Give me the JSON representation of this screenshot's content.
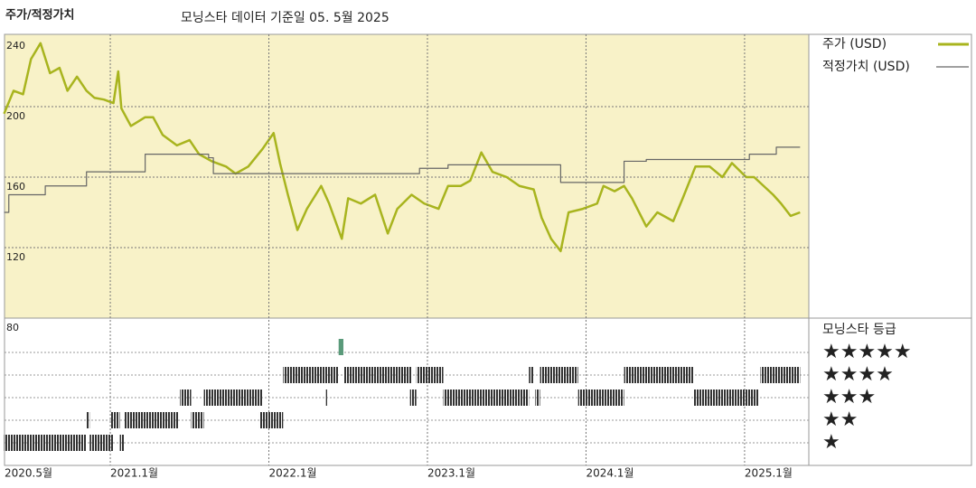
{
  "chart_data": [
    {
      "type": "line",
      "title": "주가/적정가치",
      "subtitle": "모닝스타 데이터 기준일 05. 5월 2025",
      "xlim": [
        2020.333,
        2025.405
      ],
      "ylim": [
        80,
        240
      ],
      "yticks": [
        80,
        120,
        160,
        200,
        240
      ],
      "grid": true,
      "series": [
        {
          "name": "주가 (USD)",
          "color": "#a8b41e",
          "step": false,
          "x": [
            2020.33,
            2020.39,
            2020.45,
            2020.5,
            2020.56,
            2020.62,
            2020.68,
            2020.73,
            2020.79,
            2020.85,
            2020.9,
            2020.96,
            2021.02,
            2021.05,
            2021.07,
            2021.13,
            2021.22,
            2021.27,
            2021.33,
            2021.42,
            2021.5,
            2021.56,
            2021.64,
            2021.73,
            2021.79,
            2021.87,
            2021.96,
            2022.03,
            2022.07,
            2022.12,
            2022.18,
            2022.24,
            2022.33,
            2022.38,
            2022.46,
            2022.5,
            2022.58,
            2022.67,
            2022.75,
            2022.81,
            2022.9,
            2022.98,
            2023.07,
            2023.13,
            2023.21,
            2023.27,
            2023.34,
            2023.41,
            2023.5,
            2023.58,
            2023.67,
            2023.72,
            2023.78,
            2023.84,
            2023.89,
            2023.98,
            2024.07,
            2024.11,
            2024.18,
            2024.24,
            2024.29,
            2024.38,
            2024.45,
            2024.55,
            2024.61,
            2024.69,
            2024.78,
            2024.86,
            2024.92,
            2025.01,
            2025.06,
            2025.12,
            2025.18,
            2025.23,
            2025.29,
            2025.35
          ],
          "values": [
            196,
            209,
            207,
            227,
            236,
            219,
            222,
            209,
            217,
            209,
            205,
            204,
            202,
            220,
            199,
            189,
            194,
            194,
            184,
            178,
            181,
            173,
            169,
            166,
            162,
            166,
            176,
            185,
            168,
            150,
            130,
            142,
            155,
            145,
            125,
            148,
            145,
            150,
            128,
            142,
            150,
            145,
            142,
            155,
            155,
            158,
            174,
            163,
            160,
            155,
            153,
            137,
            125,
            118,
            140,
            142,
            145,
            155,
            152,
            155,
            148,
            132,
            140,
            135,
            148,
            166,
            166,
            160,
            168,
            160,
            160,
            155,
            150,
            145,
            138,
            140
          ]
        },
        {
          "name": "적정가치 (USD)",
          "color": "#666666",
          "step": true,
          "x": [
            2020.33,
            2020.36,
            2020.59,
            2020.85,
            2021.22,
            2021.62,
            2021.65,
            2022.01,
            2022.95,
            2023.13,
            2023.84,
            2024.24,
            2024.38,
            2025.03,
            2025.2,
            2025.35
          ],
          "values": [
            140,
            150,
            155,
            163,
            173,
            171,
            162,
            162,
            165,
            167,
            157,
            169,
            170,
            173,
            177,
            177
          ]
        }
      ]
    },
    {
      "type": "rating",
      "title": "모닝스타 등급",
      "xlim": [
        2020.333,
        2025.405
      ],
      "xticks": [
        {
          "value": 2020.333,
          "label": "2020.5월"
        },
        {
          "value": 2021,
          "label": "2021.1월"
        },
        {
          "value": 2022,
          "label": "2022.1월"
        },
        {
          "value": 2023,
          "label": "2023.1월"
        },
        {
          "value": 2024,
          "label": "2024.1월"
        },
        {
          "value": 2025,
          "label": "2025.1월"
        }
      ],
      "categories": [
        "★",
        "★★",
        "★★★",
        "★★★★",
        "★★★★★"
      ],
      "color": "#333333",
      "highlight_color": "#5a9a7a",
      "segments": [
        {
          "start": 2020.33,
          "end": 2020.85,
          "stars": 1
        },
        {
          "start": 2020.87,
          "end": 2021.02,
          "stars": 1
        },
        {
          "start": 2021.06,
          "end": 2021.09,
          "stars": 1
        },
        {
          "start": 2020.85,
          "end": 2020.87,
          "stars": 2
        },
        {
          "start": 2021.0,
          "end": 2021.06,
          "stars": 2
        },
        {
          "start": 2021.09,
          "end": 2021.43,
          "stars": 2
        },
        {
          "start": 2021.51,
          "end": 2021.59,
          "stars": 2
        },
        {
          "start": 2021.94,
          "end": 2022.09,
          "stars": 2
        },
        {
          "start": 2021.44,
          "end": 2021.51,
          "stars": 3
        },
        {
          "start": 2021.59,
          "end": 2021.96,
          "stars": 3
        },
        {
          "start": 2022.36,
          "end": 2022.37,
          "stars": 3
        },
        {
          "start": 2022.89,
          "end": 2022.93,
          "stars": 3
        },
        {
          "start": 2023.1,
          "end": 2023.64,
          "stars": 3
        },
        {
          "start": 2023.68,
          "end": 2023.71,
          "stars": 3
        },
        {
          "start": 2023.95,
          "end": 2024.24,
          "stars": 3
        },
        {
          "start": 2024.68,
          "end": 2025.09,
          "stars": 3
        },
        {
          "start": 2022.09,
          "end": 2022.44,
          "stars": 4
        },
        {
          "start": 2022.47,
          "end": 2022.9,
          "stars": 4
        },
        {
          "start": 2022.93,
          "end": 2023.1,
          "stars": 4
        },
        {
          "start": 2023.64,
          "end": 2023.67,
          "stars": 4
        },
        {
          "start": 2023.71,
          "end": 2023.95,
          "stars": 4
        },
        {
          "start": 2024.24,
          "end": 2024.68,
          "stars": 4
        },
        {
          "start": 2025.1,
          "end": 2025.35,
          "stars": 4
        },
        {
          "start": 2022.44,
          "end": 2022.47,
          "stars": 5
        }
      ]
    }
  ]
}
